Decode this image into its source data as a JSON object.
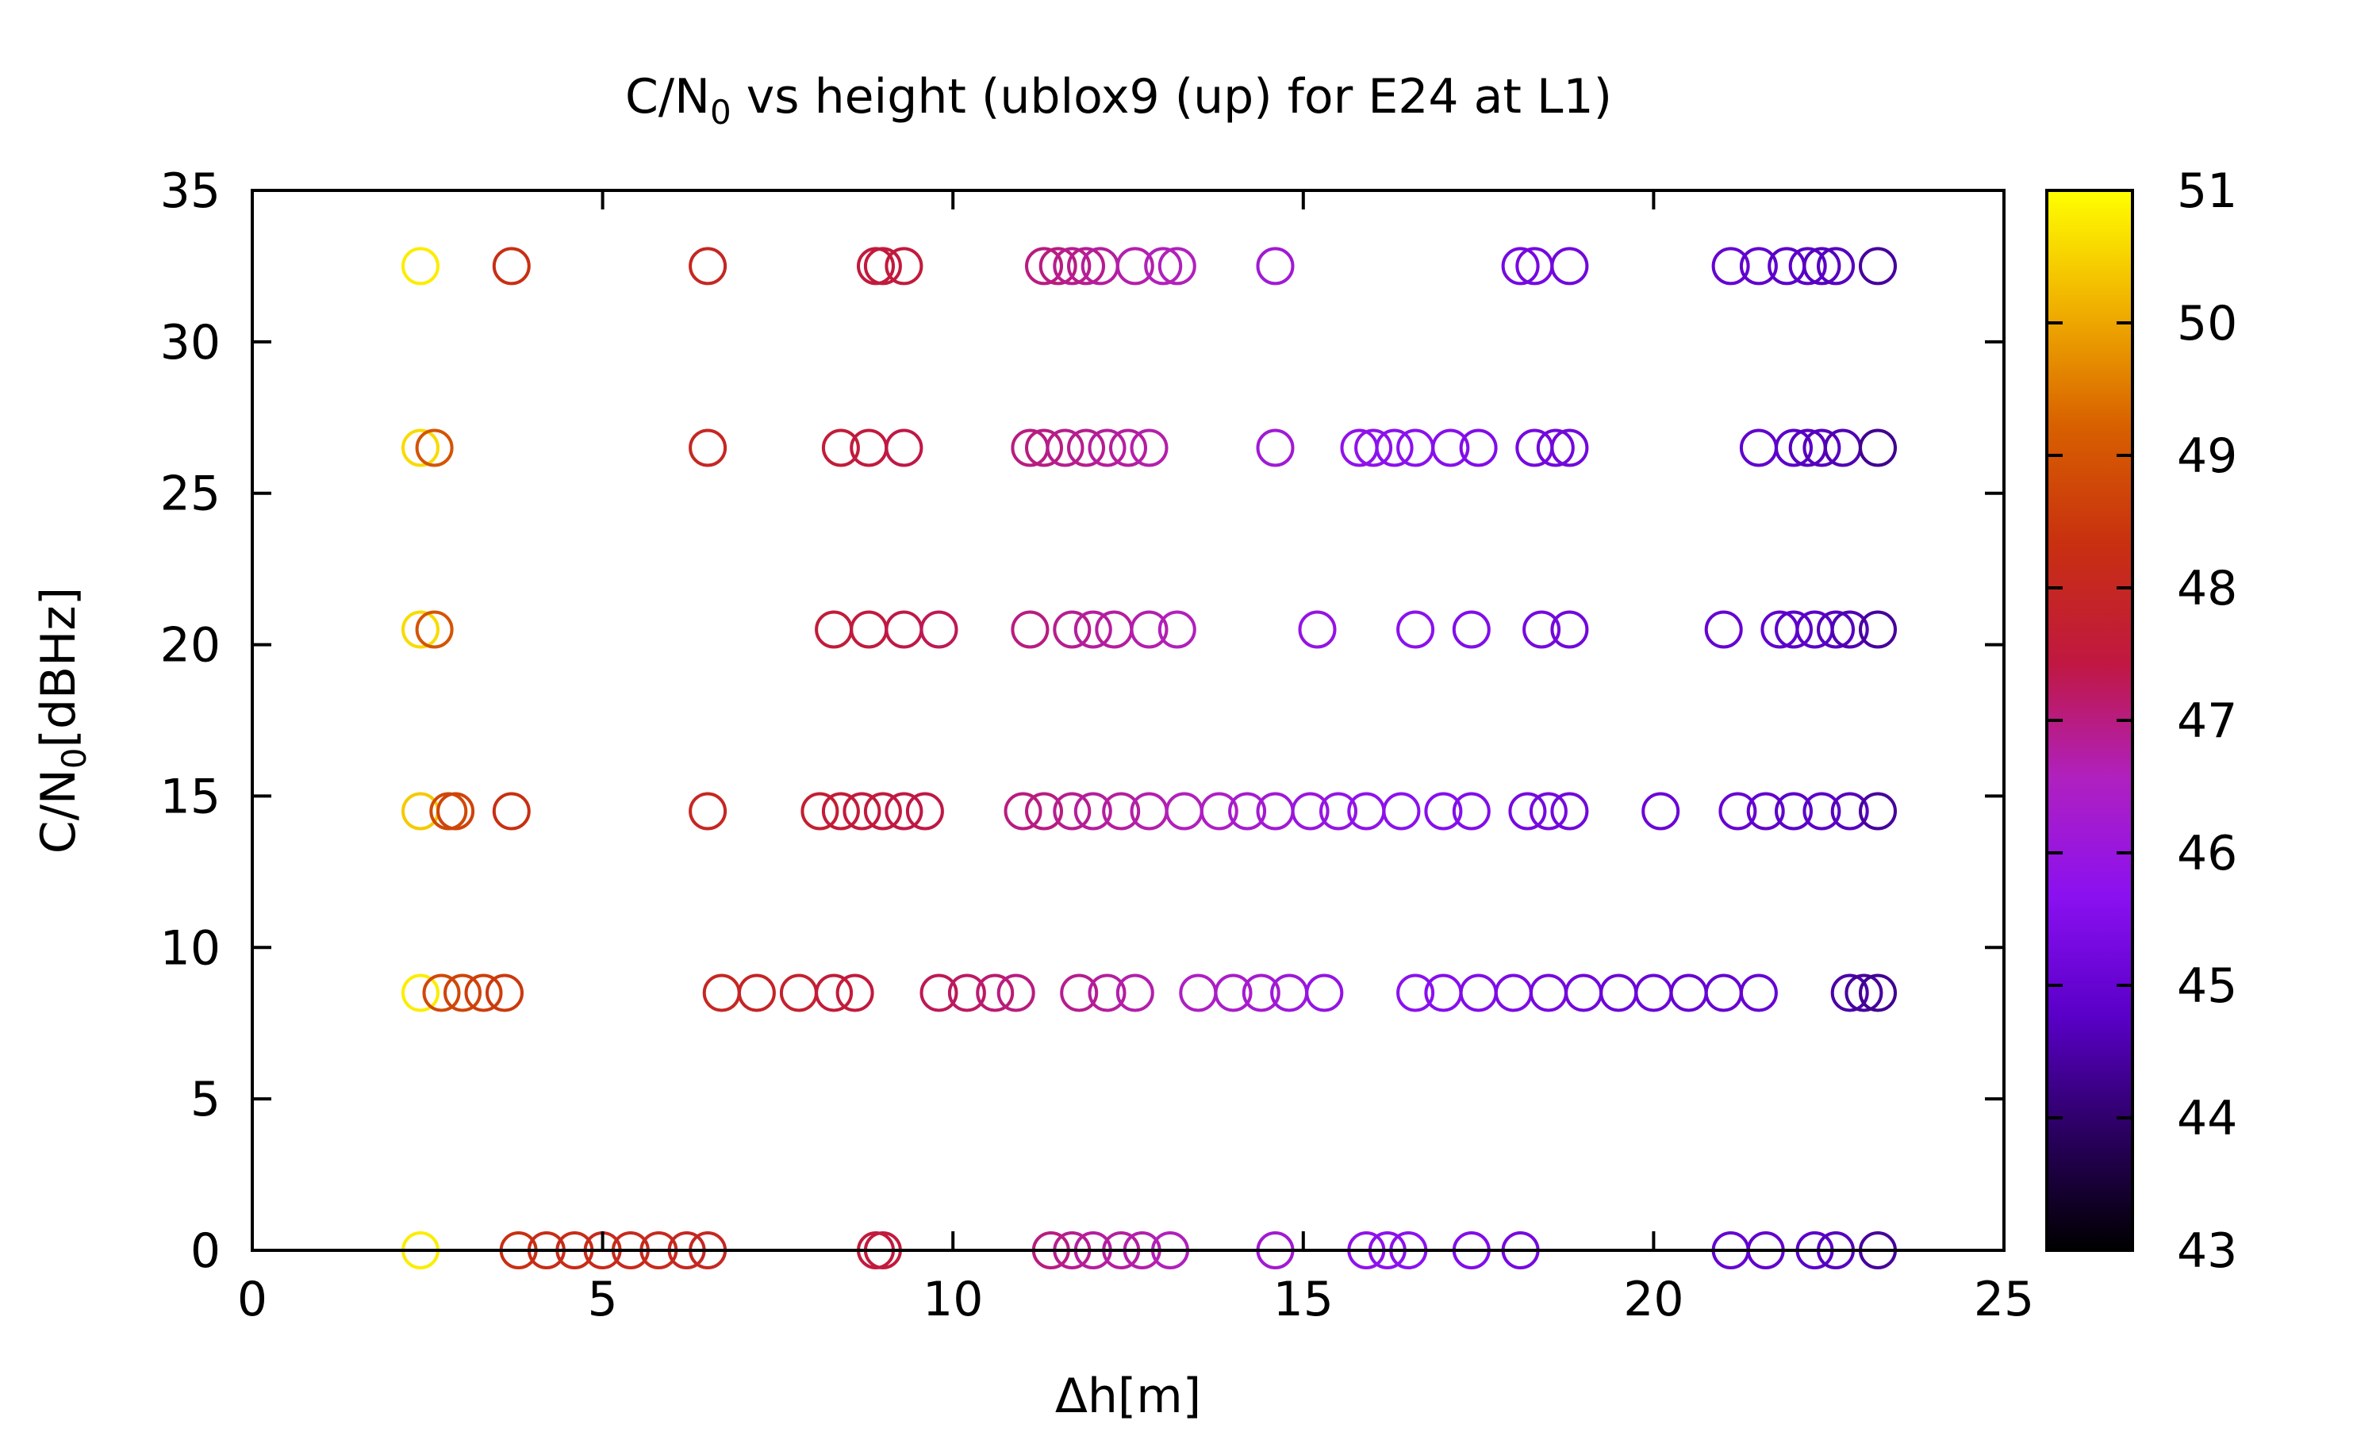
{
  "chart_data": {
    "type": "scatter",
    "title": {
      "base": "C/N",
      "sub": "0",
      "rest": " vs height (ublox9 (up) for E24 at L1)"
    },
    "xlabel": "Δh[m]",
    "ylabel": {
      "base": "C/N",
      "sub": "0",
      "rest": "[dBHz]"
    },
    "xlim": [
      0,
      25
    ],
    "ylim": [
      0,
      35
    ],
    "xticks": [
      "0",
      "5",
      "10",
      "15",
      "20",
      "25"
    ],
    "yticks": [
      "0",
      "5",
      "10",
      "15",
      "20",
      "25",
      "30",
      "35"
    ],
    "colorbar": {
      "min": 43,
      "max": 51,
      "ticks": [
        "43",
        "44",
        "45",
        "46",
        "47",
        "48",
        "49",
        "50",
        "51"
      ],
      "palette": "gnuplot black-purple-red-yellow"
    },
    "grid": false,
    "marker": "open-circle",
    "colorscale_stops": [
      "#000000",
      "#2a0060",
      "#5a00c8",
      "#8a10f0",
      "#b020c0",
      "#c01840",
      "#c83010",
      "#d86000",
      "#f0b000",
      "#ffff00"
    ],
    "series": [
      {
        "y": 32.5,
        "points": [
          [
            2.4,
            50.8
          ],
          [
            3.7,
            48.3
          ],
          [
            6.5,
            48.0
          ],
          [
            8.9,
            47.5
          ],
          [
            9.0,
            47.5
          ],
          [
            9.3,
            47.5
          ],
          [
            11.3,
            47.0
          ],
          [
            11.5,
            47.0
          ],
          [
            11.7,
            46.9
          ],
          [
            11.9,
            46.9
          ],
          [
            12.1,
            46.8
          ],
          [
            12.6,
            46.7
          ],
          [
            13.0,
            46.6
          ],
          [
            13.2,
            46.6
          ],
          [
            14.6,
            46.2
          ],
          [
            18.1,
            45.3
          ],
          [
            18.3,
            45.3
          ],
          [
            18.8,
            45.2
          ],
          [
            21.1,
            45.0
          ],
          [
            21.5,
            44.9
          ],
          [
            21.9,
            44.8
          ],
          [
            22.2,
            44.8
          ],
          [
            22.4,
            44.7
          ],
          [
            22.6,
            44.7
          ],
          [
            23.2,
            44.4
          ]
        ]
      },
      {
        "y": 26.5,
        "points": [
          [
            2.4,
            50.6
          ],
          [
            2.6,
            49.0
          ],
          [
            6.5,
            48.0
          ],
          [
            8.4,
            47.6
          ],
          [
            8.8,
            47.5
          ],
          [
            9.3,
            47.4
          ],
          [
            11.1,
            47.0
          ],
          [
            11.3,
            47.0
          ],
          [
            11.6,
            46.9
          ],
          [
            11.9,
            46.9
          ],
          [
            12.2,
            46.8
          ],
          [
            12.5,
            46.8
          ],
          [
            12.8,
            46.7
          ],
          [
            14.6,
            46.2
          ],
          [
            15.8,
            45.8
          ],
          [
            16.0,
            45.8
          ],
          [
            16.3,
            45.7
          ],
          [
            16.6,
            45.7
          ],
          [
            17.1,
            45.6
          ],
          [
            17.5,
            45.5
          ],
          [
            18.3,
            45.3
          ],
          [
            18.6,
            45.2
          ],
          [
            18.8,
            45.2
          ],
          [
            21.5,
            44.9
          ],
          [
            22.0,
            44.8
          ],
          [
            22.2,
            44.7
          ],
          [
            22.4,
            44.7
          ],
          [
            22.7,
            44.6
          ],
          [
            23.2,
            44.3
          ]
        ]
      },
      {
        "y": 20.5,
        "points": [
          [
            2.4,
            50.6
          ],
          [
            2.6,
            49.0
          ],
          [
            8.3,
            47.6
          ],
          [
            8.8,
            47.5
          ],
          [
            9.3,
            47.4
          ],
          [
            9.8,
            47.3
          ],
          [
            11.1,
            47.0
          ],
          [
            11.7,
            46.9
          ],
          [
            12.0,
            46.8
          ],
          [
            12.3,
            46.8
          ],
          [
            12.8,
            46.7
          ],
          [
            13.2,
            46.6
          ],
          [
            15.2,
            45.9
          ],
          [
            16.6,
            45.7
          ],
          [
            17.4,
            45.5
          ],
          [
            18.4,
            45.3
          ],
          [
            18.8,
            45.2
          ],
          [
            21.0,
            45.0
          ],
          [
            21.8,
            44.9
          ],
          [
            22.0,
            44.8
          ],
          [
            22.3,
            44.8
          ],
          [
            22.6,
            44.7
          ],
          [
            22.8,
            44.6
          ],
          [
            23.2,
            44.4
          ]
        ]
      },
      {
        "y": 14.5,
        "points": [
          [
            2.4,
            50.4
          ],
          [
            2.8,
            48.8
          ],
          [
            2.9,
            48.7
          ],
          [
            3.7,
            48.3
          ],
          [
            6.5,
            48.0
          ],
          [
            8.1,
            47.7
          ],
          [
            8.4,
            47.6
          ],
          [
            8.7,
            47.5
          ],
          [
            9.0,
            47.5
          ],
          [
            9.3,
            47.4
          ],
          [
            9.6,
            47.4
          ],
          [
            11.0,
            47.0
          ],
          [
            11.3,
            47.0
          ],
          [
            11.7,
            46.9
          ],
          [
            12.0,
            46.8
          ],
          [
            12.4,
            46.8
          ],
          [
            12.8,
            46.7
          ],
          [
            13.3,
            46.6
          ],
          [
            13.8,
            46.5
          ],
          [
            14.2,
            46.3
          ],
          [
            14.6,
            46.2
          ],
          [
            15.1,
            46.0
          ],
          [
            15.5,
            45.9
          ],
          [
            15.9,
            45.8
          ],
          [
            16.4,
            45.7
          ],
          [
            17.0,
            45.6
          ],
          [
            17.4,
            45.5
          ],
          [
            18.2,
            45.3
          ],
          [
            18.5,
            45.3
          ],
          [
            18.8,
            45.2
          ],
          [
            20.1,
            45.1
          ],
          [
            21.2,
            45.0
          ],
          [
            21.6,
            44.9
          ],
          [
            22.0,
            44.8
          ],
          [
            22.4,
            44.8
          ],
          [
            22.8,
            44.7
          ],
          [
            23.2,
            44.4
          ]
        ]
      },
      {
        "y": 8.5,
        "points": [
          [
            2.4,
            50.8
          ],
          [
            2.7,
            48.8
          ],
          [
            3.0,
            48.7
          ],
          [
            3.3,
            48.6
          ],
          [
            3.6,
            48.5
          ],
          [
            6.7,
            48.0
          ],
          [
            7.2,
            47.9
          ],
          [
            7.8,
            47.8
          ],
          [
            8.3,
            47.6
          ],
          [
            8.6,
            47.5
          ],
          [
            9.8,
            47.3
          ],
          [
            10.2,
            47.2
          ],
          [
            10.6,
            47.1
          ],
          [
            10.9,
            47.0
          ],
          [
            11.8,
            46.9
          ],
          [
            12.2,
            46.8
          ],
          [
            12.6,
            46.7
          ],
          [
            13.5,
            46.5
          ],
          [
            14.0,
            46.4
          ],
          [
            14.4,
            46.3
          ],
          [
            14.8,
            46.1
          ],
          [
            15.3,
            45.9
          ],
          [
            16.6,
            45.7
          ],
          [
            17.0,
            45.6
          ],
          [
            17.5,
            45.5
          ],
          [
            18.0,
            45.4
          ],
          [
            18.5,
            45.3
          ],
          [
            19.0,
            45.2
          ],
          [
            19.5,
            45.1
          ],
          [
            20.0,
            45.1
          ],
          [
            20.5,
            45.0
          ],
          [
            21.0,
            45.0
          ],
          [
            21.5,
            45.0
          ],
          [
            22.8,
            44.5
          ],
          [
            23.0,
            44.4
          ],
          [
            23.2,
            44.3
          ]
        ]
      },
      {
        "y": 0,
        "points": [
          [
            2.4,
            50.8
          ],
          [
            3.8,
            48.3
          ],
          [
            4.2,
            48.2
          ],
          [
            4.6,
            48.2
          ],
          [
            5.0,
            48.1
          ],
          [
            5.4,
            48.1
          ],
          [
            5.8,
            48.1
          ],
          [
            6.2,
            48.0
          ],
          [
            6.5,
            48.0
          ],
          [
            8.9,
            47.5
          ],
          [
            9.0,
            47.5
          ],
          [
            11.4,
            47.0
          ],
          [
            11.7,
            46.9
          ],
          [
            12.0,
            46.8
          ],
          [
            12.4,
            46.8
          ],
          [
            12.7,
            46.7
          ],
          [
            13.1,
            46.6
          ],
          [
            14.6,
            46.2
          ],
          [
            15.9,
            45.8
          ],
          [
            16.2,
            45.7
          ],
          [
            16.5,
            45.7
          ],
          [
            17.4,
            45.5
          ],
          [
            18.1,
            45.3
          ],
          [
            21.1,
            45.0
          ],
          [
            21.6,
            44.9
          ],
          [
            22.3,
            44.8
          ],
          [
            22.6,
            44.7
          ],
          [
            23.2,
            44.4
          ]
        ]
      }
    ]
  }
}
